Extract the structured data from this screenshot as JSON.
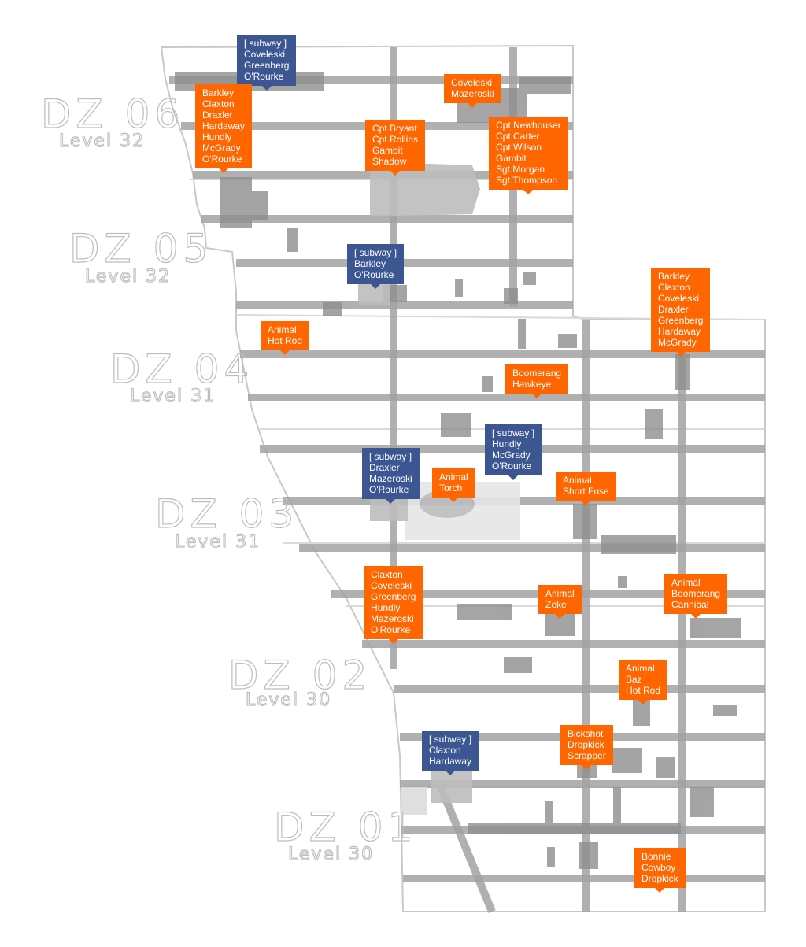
{
  "map": {
    "colors": {
      "orange_marker": "#ff6600",
      "subway_marker": "#3b5691",
      "street": "#9c9c9c",
      "block": "#8f8f8f",
      "zone_label": "#c4c4c4"
    },
    "districts": [
      {
        "id": "dz06",
        "name": "DZ 06",
        "level": "Level 32"
      },
      {
        "id": "dz05",
        "name": "DZ 05",
        "level": "Level 32"
      },
      {
        "id": "dz04",
        "name": "DZ 04",
        "level": "Level 31"
      },
      {
        "id": "dz03",
        "name": "DZ 03",
        "level": "Level 31"
      },
      {
        "id": "dz02",
        "name": "DZ 02",
        "level": "Level 30"
      },
      {
        "id": "dz01",
        "name": "DZ 01",
        "level": "Level 30"
      }
    ],
    "markers": [
      {
        "type": "subway",
        "lines": [
          "[ subway ]",
          "Coveleski",
          "Greenberg",
          "O'Rourke"
        ]
      },
      {
        "type": "boss",
        "lines": [
          "Coveleski",
          "Mazeroski"
        ]
      },
      {
        "type": "boss",
        "lines": [
          "Barkley",
          "Claxton",
          "Draxler",
          "Hardaway",
          "Hundly",
          "McGrady",
          "O'Rourke"
        ]
      },
      {
        "type": "boss",
        "lines": [
          "Cpt.Bryant",
          "Cpt.Rollins",
          "Gambit",
          "Shadow"
        ]
      },
      {
        "type": "boss",
        "lines": [
          "Cpt.Newhouser",
          "Cpt.Carter",
          "Cpt.Wilson",
          "Gambit",
          "Sgt.Morgan",
          "Sgt.Thompson"
        ]
      },
      {
        "type": "subway",
        "lines": [
          "[ subway ]",
          "Barkley",
          "O'Rourke"
        ]
      },
      {
        "type": "boss",
        "lines": [
          "Barkley",
          "Claxton",
          "Coveleski",
          "Draxler",
          "Greenberg",
          "Hardaway",
          "McGrady"
        ]
      },
      {
        "type": "boss",
        "lines": [
          "Animal",
          "Hot Rod"
        ]
      },
      {
        "type": "boss",
        "lines": [
          "Boomerang",
          "Hawkeye"
        ]
      },
      {
        "type": "subway",
        "lines": [
          "[ subway ]",
          "Hundly",
          "McGrady",
          "O'Rourke"
        ]
      },
      {
        "type": "subway",
        "lines": [
          "[ subway ]",
          "Draxler",
          "Mazeroski",
          "O'Rourke"
        ]
      },
      {
        "type": "boss",
        "lines": [
          "Animal",
          "Torch"
        ]
      },
      {
        "type": "boss",
        "lines": [
          "Animal",
          "Short Fuse"
        ]
      },
      {
        "type": "boss",
        "lines": [
          "Claxton",
          "Coveleski",
          "Greenberg",
          "Hundly",
          "Mazeroski",
          "O'Rourke"
        ]
      },
      {
        "type": "boss",
        "lines": [
          "Animal",
          "Zeke"
        ]
      },
      {
        "type": "boss",
        "lines": [
          "Animal",
          "Boomerang",
          "Cannibal"
        ]
      },
      {
        "type": "boss",
        "lines": [
          "Animal",
          "Baz",
          "Hot Rod"
        ]
      },
      {
        "type": "subway",
        "lines": [
          "[ subway ]",
          "Claxton",
          "Hardaway"
        ]
      },
      {
        "type": "boss",
        "lines": [
          "Bickshot",
          "Dropkick",
          "Scrapper"
        ]
      },
      {
        "type": "boss",
        "lines": [
          "Bonnie",
          "Cowboy",
          "Dropkick"
        ]
      }
    ]
  }
}
